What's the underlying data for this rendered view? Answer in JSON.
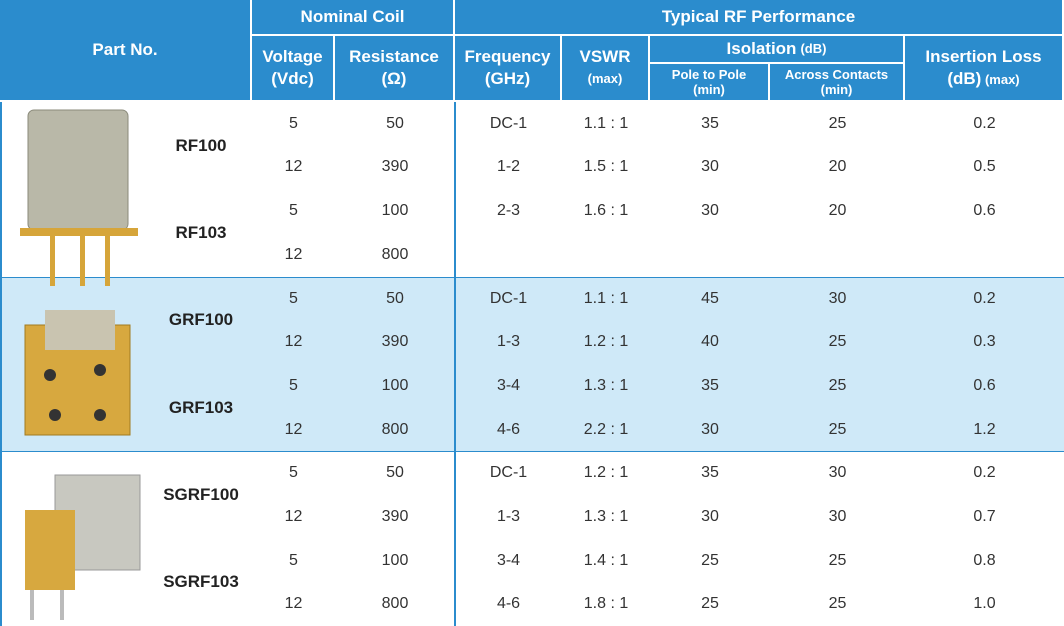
{
  "header": {
    "part_no": "Part No.",
    "nominal_coil": "Nominal Coil",
    "typical_rf": "Typical RF Performance",
    "voltage": [
      "Voltage",
      "(Vdc)"
    ],
    "resistance": [
      "Resistance",
      "(Ω)"
    ],
    "frequency": [
      "Frequency",
      "(GHz)"
    ],
    "vswr": [
      "VSWR",
      "(max)"
    ],
    "isolation": [
      "Isolation",
      "(dB)"
    ],
    "pole_to_pole": [
      "Pole to Pole",
      "(min)"
    ],
    "across_contacts": [
      "Across Contacts",
      "(min)"
    ],
    "insertion_loss": [
      "Insertion Loss",
      "(dB)",
      "(max)"
    ]
  },
  "groups": [
    {
      "parts": [
        "RF100",
        "RF103"
      ],
      "rows": [
        [
          5,
          50,
          "DC-1",
          "1.1 : 1",
          35,
          25,
          0.2
        ],
        [
          12,
          390,
          "1-2",
          "1.5 : 1",
          30,
          20,
          0.5
        ],
        [
          5,
          100,
          "2-3",
          "1.6 : 1",
          30,
          20,
          0.6
        ],
        [
          12,
          800
        ]
      ]
    },
    {
      "parts": [
        "GRF100",
        "GRF103"
      ],
      "rows": [
        [
          5,
          50,
          "DC-1",
          "1.1 : 1",
          45,
          30,
          0.2
        ],
        [
          12,
          390,
          "1-3",
          "1.2 : 1",
          40,
          25,
          0.3
        ],
        [
          5,
          100,
          "3-4",
          "1.3 : 1",
          35,
          25,
          0.6
        ],
        [
          12,
          800,
          "4-6",
          "2.2 : 1",
          30,
          25,
          1.2
        ]
      ]
    },
    {
      "parts": [
        "SGRF100",
        "SGRF103"
      ],
      "rows": [
        [
          5,
          50,
          "DC-1",
          "1.2 : 1",
          35,
          30,
          0.2
        ],
        [
          12,
          390,
          "1-3",
          "1.3 : 1",
          30,
          30,
          0.7
        ],
        [
          5,
          100,
          "3-4",
          "1.4 : 1",
          25,
          25,
          0.8
        ],
        [
          12,
          800,
          "4-6",
          "1.8 : 1",
          25,
          25,
          "1.0"
        ]
      ]
    }
  ]
}
